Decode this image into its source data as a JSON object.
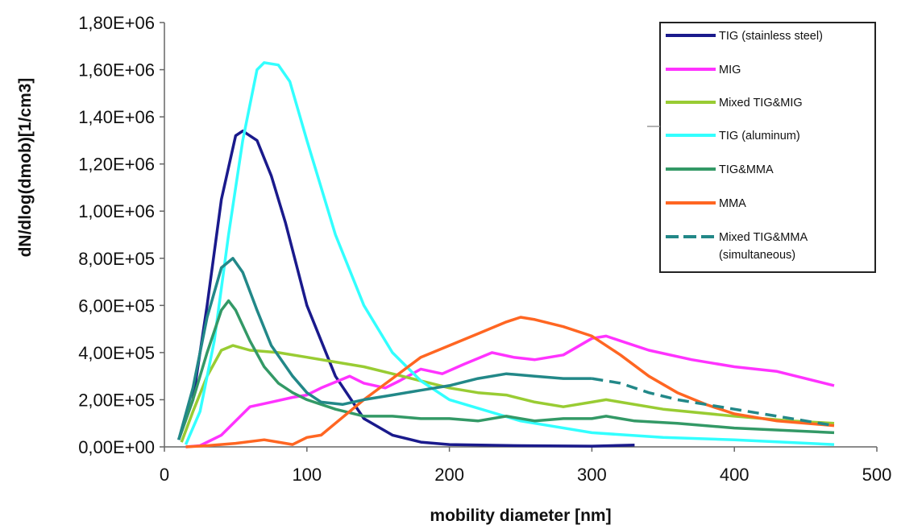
{
  "chart_data": {
    "type": "line",
    "title": "",
    "xlabel": "mobility diameter [nm]",
    "ylabel": "dN/dlog(dmob)[1/cm3]",
    "xlim": [
      0,
      500
    ],
    "ylim": [
      0,
      1800000
    ],
    "x_ticks": [
      "0",
      "100",
      "200",
      "300",
      "400",
      "500"
    ],
    "y_ticks": [
      "0,00E+00",
      "2,00E+05",
      "4,00E+05",
      "6,00E+05",
      "8,00E+05",
      "1,00E+06",
      "1,20E+06",
      "1,40E+06",
      "1,60E+06",
      "1,80E+06"
    ],
    "grid": false,
    "legend_position": "top-right",
    "series": [
      {
        "name": "TIG (stainless steel)",
        "color": "#1a1a8c",
        "dash": false,
        "points": [
          [
            10,
            30000
          ],
          [
            20,
            200000
          ],
          [
            30,
            600000
          ],
          [
            40,
            1050000
          ],
          [
            50,
            1320000
          ],
          [
            55,
            1340000
          ],
          [
            65,
            1300000
          ],
          [
            75,
            1150000
          ],
          [
            85,
            950000
          ],
          [
            100,
            600000
          ],
          [
            120,
            300000
          ],
          [
            140,
            120000
          ],
          [
            160,
            50000
          ],
          [
            180,
            20000
          ],
          [
            200,
            10000
          ],
          [
            250,
            5000
          ],
          [
            300,
            3000
          ],
          [
            330,
            8000
          ]
        ]
      },
      {
        "name": "MIG",
        "color": "#ff33ff",
        "dash": false,
        "points": [
          [
            15,
            0
          ],
          [
            25,
            5000
          ],
          [
            40,
            50000
          ],
          [
            60,
            170000
          ],
          [
            75,
            190000
          ],
          [
            90,
            210000
          ],
          [
            100,
            220000
          ],
          [
            110,
            250000
          ],
          [
            130,
            300000
          ],
          [
            140,
            270000
          ],
          [
            155,
            250000
          ],
          [
            165,
            280000
          ],
          [
            180,
            330000
          ],
          [
            195,
            310000
          ],
          [
            210,
            350000
          ],
          [
            230,
            400000
          ],
          [
            245,
            380000
          ],
          [
            260,
            370000
          ],
          [
            280,
            390000
          ],
          [
            300,
            460000
          ],
          [
            310,
            470000
          ],
          [
            320,
            450000
          ],
          [
            340,
            410000
          ],
          [
            370,
            370000
          ],
          [
            400,
            340000
          ],
          [
            430,
            320000
          ],
          [
            470,
            260000
          ]
        ]
      },
      {
        "name": "Mixed TIG&MIG",
        "color": "#99cc33",
        "dash": false,
        "points": [
          [
            12,
            20000
          ],
          [
            20,
            150000
          ],
          [
            30,
            300000
          ],
          [
            40,
            410000
          ],
          [
            48,
            430000
          ],
          [
            60,
            410000
          ],
          [
            80,
            400000
          ],
          [
            100,
            380000
          ],
          [
            120,
            360000
          ],
          [
            140,
            340000
          ],
          [
            160,
            310000
          ],
          [
            180,
            280000
          ],
          [
            200,
            250000
          ],
          [
            220,
            230000
          ],
          [
            240,
            220000
          ],
          [
            260,
            190000
          ],
          [
            280,
            170000
          ],
          [
            300,
            190000
          ],
          [
            310,
            200000
          ],
          [
            320,
            190000
          ],
          [
            350,
            160000
          ],
          [
            400,
            130000
          ],
          [
            440,
            110000
          ],
          [
            470,
            100000
          ]
        ]
      },
      {
        "name": "TIG (aluminum)",
        "color": "#33ffff",
        "dash": false,
        "points": [
          [
            15,
            10000
          ],
          [
            25,
            150000
          ],
          [
            35,
            450000
          ],
          [
            45,
            900000
          ],
          [
            55,
            1300000
          ],
          [
            65,
            1600000
          ],
          [
            70,
            1630000
          ],
          [
            80,
            1620000
          ],
          [
            88,
            1550000
          ],
          [
            100,
            1300000
          ],
          [
            120,
            900000
          ],
          [
            140,
            600000
          ],
          [
            160,
            400000
          ],
          [
            180,
            280000
          ],
          [
            200,
            200000
          ],
          [
            250,
            110000
          ],
          [
            300,
            60000
          ],
          [
            350,
            40000
          ],
          [
            400,
            30000
          ],
          [
            470,
            10000
          ]
        ]
      },
      {
        "name": "TIG&MMA",
        "color": "#339966",
        "dash": false,
        "points": [
          [
            10,
            30000
          ],
          [
            20,
            200000
          ],
          [
            30,
            400000
          ],
          [
            40,
            580000
          ],
          [
            45,
            620000
          ],
          [
            50,
            580000
          ],
          [
            60,
            450000
          ],
          [
            70,
            340000
          ],
          [
            80,
            270000
          ],
          [
            90,
            230000
          ],
          [
            100,
            200000
          ],
          [
            120,
            160000
          ],
          [
            140,
            130000
          ],
          [
            160,
            130000
          ],
          [
            180,
            120000
          ],
          [
            200,
            120000
          ],
          [
            220,
            110000
          ],
          [
            240,
            130000
          ],
          [
            260,
            110000
          ],
          [
            280,
            120000
          ],
          [
            300,
            120000
          ],
          [
            310,
            130000
          ],
          [
            330,
            110000
          ],
          [
            360,
            100000
          ],
          [
            400,
            80000
          ],
          [
            470,
            60000
          ]
        ]
      },
      {
        "name": "MMA",
        "color": "#ff6622",
        "dash": false,
        "points": [
          [
            15,
            0
          ],
          [
            30,
            5000
          ],
          [
            50,
            15000
          ],
          [
            70,
            30000
          ],
          [
            80,
            20000
          ],
          [
            90,
            10000
          ],
          [
            100,
            40000
          ],
          [
            110,
            50000
          ],
          [
            120,
            100000
          ],
          [
            140,
            200000
          ],
          [
            160,
            290000
          ],
          [
            180,
            380000
          ],
          [
            200,
            430000
          ],
          [
            220,
            480000
          ],
          [
            240,
            530000
          ],
          [
            250,
            550000
          ],
          [
            260,
            540000
          ],
          [
            280,
            510000
          ],
          [
            300,
            470000
          ],
          [
            320,
            390000
          ],
          [
            340,
            300000
          ],
          [
            360,
            230000
          ],
          [
            380,
            180000
          ],
          [
            400,
            140000
          ],
          [
            430,
            110000
          ],
          [
            470,
            90000
          ]
        ]
      },
      {
        "name": "Mixed TIG&MMA (simultaneous)",
        "color": "#228888",
        "dash": true,
        "solid_until": 300,
        "points": [
          [
            10,
            30000
          ],
          [
            20,
            250000
          ],
          [
            30,
            550000
          ],
          [
            40,
            760000
          ],
          [
            48,
            800000
          ],
          [
            55,
            740000
          ],
          [
            65,
            580000
          ],
          [
            75,
            430000
          ],
          [
            90,
            300000
          ],
          [
            100,
            230000
          ],
          [
            110,
            190000
          ],
          [
            125,
            180000
          ],
          [
            140,
            200000
          ],
          [
            160,
            220000
          ],
          [
            180,
            240000
          ],
          [
            200,
            260000
          ],
          [
            220,
            290000
          ],
          [
            240,
            310000
          ],
          [
            260,
            300000
          ],
          [
            280,
            290000
          ],
          [
            300,
            290000
          ],
          [
            320,
            270000
          ],
          [
            340,
            230000
          ],
          [
            360,
            200000
          ],
          [
            380,
            180000
          ],
          [
            400,
            160000
          ],
          [
            430,
            130000
          ],
          [
            470,
            90000
          ]
        ]
      }
    ]
  }
}
